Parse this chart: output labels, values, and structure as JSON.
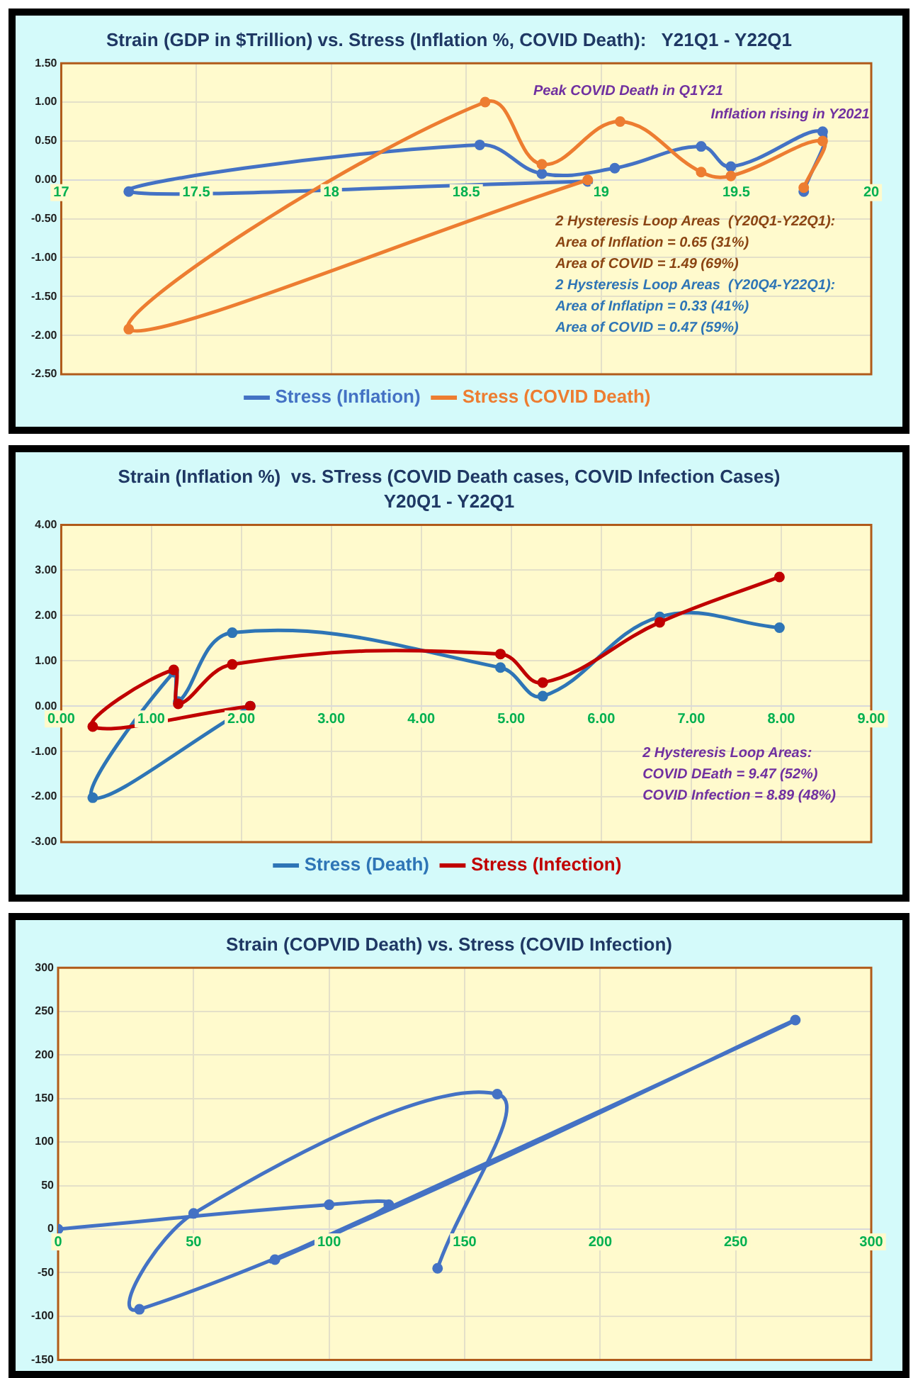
{
  "chart_data": [
    {
      "type": "line",
      "title": "Strain (GDP in $Trillion) vs. Stress (Inflation %, COVID Death):   Y21Q1 - Y22Q1",
      "series": [
        {
          "name": "Stress (Inflation)",
          "color": "#4472c4",
          "x": [
            19.75,
            19.82,
            19.48,
            19.37,
            19.05,
            18.78,
            18.55,
            17.25,
            18.95
          ],
          "values": [
            -0.15,
            0.62,
            0.17,
            0.43,
            0.15,
            0.08,
            0.45,
            -0.15,
            -0.02
          ]
        },
        {
          "name": "Stress (COVID Death)",
          "color": "#ed7d31",
          "x": [
            19.75,
            19.82,
            19.48,
            19.37,
            19.07,
            18.78,
            18.57,
            17.25,
            18.95
          ],
          "values": [
            -0.1,
            0.5,
            0.05,
            0.1,
            0.75,
            0.2,
            1.0,
            -1.92,
            0.0
          ]
        }
      ],
      "xlim": [
        17,
        20
      ],
      "xticks": [
        17,
        17.5,
        18,
        18.5,
        19,
        19.5,
        20
      ],
      "ylim": [
        -2.5,
        1.5
      ],
      "yticks": [
        {
          "value": 1.5,
          "label": "1.50"
        },
        {
          "value": 1.0,
          "label": "1.00"
        },
        {
          "value": 0.5,
          "label": "0.50"
        },
        {
          "value": 0,
          "label": "0.00"
        },
        {
          "value": -0.5,
          "label": "-0.50"
        },
        {
          "value": -1.0,
          "label": "-1.00"
        },
        {
          "value": -1.5,
          "label": "-1.50"
        },
        {
          "value": -2.0,
          "label": "-2.00"
        },
        {
          "value": -2.5,
          "label": "-2.50"
        }
      ],
      "annotations": [
        "Peak COVID Death in Q1Y21",
        "Inflation rising in Y2021",
        "2 Hysteresis Loop Areas  (Y20Q1-Y22Q1):",
        "Area of Inflation = 0.65 (31%)",
        "Area of COVID = 1.49 (69%)",
        "2 Hysteresis Loop Areas  (Y20Q4-Y22Q1):",
        "Area of Inflatipn = 0.33 (41%)",
        "Area of COVID = 0.47 (59%)"
      ],
      "grid": true,
      "legend": "bottom",
      "marker": "circle"
    },
    {
      "type": "line",
      "title": "Strain (Inflation %)  vs. STress (COVID Death cases, COVID Infection Cases)",
      "subtitle": "Y20Q1 - Y22Q1",
      "series": [
        {
          "name": "Stress (Death)",
          "color": "#2e75b6",
          "x": [
            7.98,
            6.65,
            5.35,
            4.88,
            1.9,
            1.3,
            1.25,
            0.35,
            2.1
          ],
          "values": [
            1.73,
            1.97,
            0.22,
            0.85,
            1.62,
            0.1,
            0.75,
            -2.02,
            0.0
          ]
        },
        {
          "name": "Stress (Infection)",
          "color": "#c00000",
          "x": [
            7.98,
            6.65,
            5.35,
            4.88,
            1.9,
            1.3,
            1.25,
            0.35,
            2.1
          ],
          "values": [
            2.85,
            1.85,
            0.52,
            1.15,
            0.92,
            0.05,
            0.8,
            -0.45,
            0.0
          ]
        }
      ],
      "xlim": [
        0,
        9
      ],
      "xticks": [
        {
          "value": 0,
          "label": "0.00"
        },
        {
          "value": 1,
          "label": "1.00"
        },
        {
          "value": 2,
          "label": "2.00"
        },
        {
          "value": 3,
          "label": "3.00"
        },
        {
          "value": 4,
          "label": "4.00"
        },
        {
          "value": 5,
          "label": "5.00"
        },
        {
          "value": 6,
          "label": "6.00"
        },
        {
          "value": 7,
          "label": "7.00"
        },
        {
          "value": 8,
          "label": "8.00"
        },
        {
          "value": 9,
          "label": "9.00"
        }
      ],
      "ylim": [
        -3,
        4
      ],
      "yticks": [
        {
          "value": 4,
          "label": "4.00"
        },
        {
          "value": 3,
          "label": "3.00"
        },
        {
          "value": 2,
          "label": "2.00"
        },
        {
          "value": 1,
          "label": "1.00"
        },
        {
          "value": 0,
          "label": "0.00"
        },
        {
          "value": -1,
          "label": "-1.00"
        },
        {
          "value": -2,
          "label": "-2.00"
        },
        {
          "value": -3,
          "label": "-3.00"
        }
      ],
      "annotations": [
        "2 Hysteresis Loop Areas:",
        "COVID DEath = 9.47 (52%)",
        "COVID Infection = 8.89 (48%)"
      ],
      "grid": true,
      "legend": "bottom",
      "marker": "circle"
    },
    {
      "type": "line",
      "title": "Strain (COPVID Death) vs. Stress (COVID Infection)",
      "series": [
        {
          "color": "#4472c4",
          "x": [
            0,
            100,
            122,
            80,
            272,
            30,
            50,
            162,
            140
          ],
          "values": [
            0,
            28,
            28,
            -35,
            240,
            -92,
            18,
            155,
            -45
          ]
        }
      ],
      "xlim": [
        0,
        300
      ],
      "xticks": [
        0,
        50,
        100,
        150,
        200,
        250,
        300
      ],
      "ylim": [
        -150,
        300
      ],
      "yticks": [
        300,
        250,
        200,
        150,
        100,
        50,
        0,
        -50,
        -100,
        -150
      ],
      "grid": true,
      "marker": "circle"
    }
  ]
}
